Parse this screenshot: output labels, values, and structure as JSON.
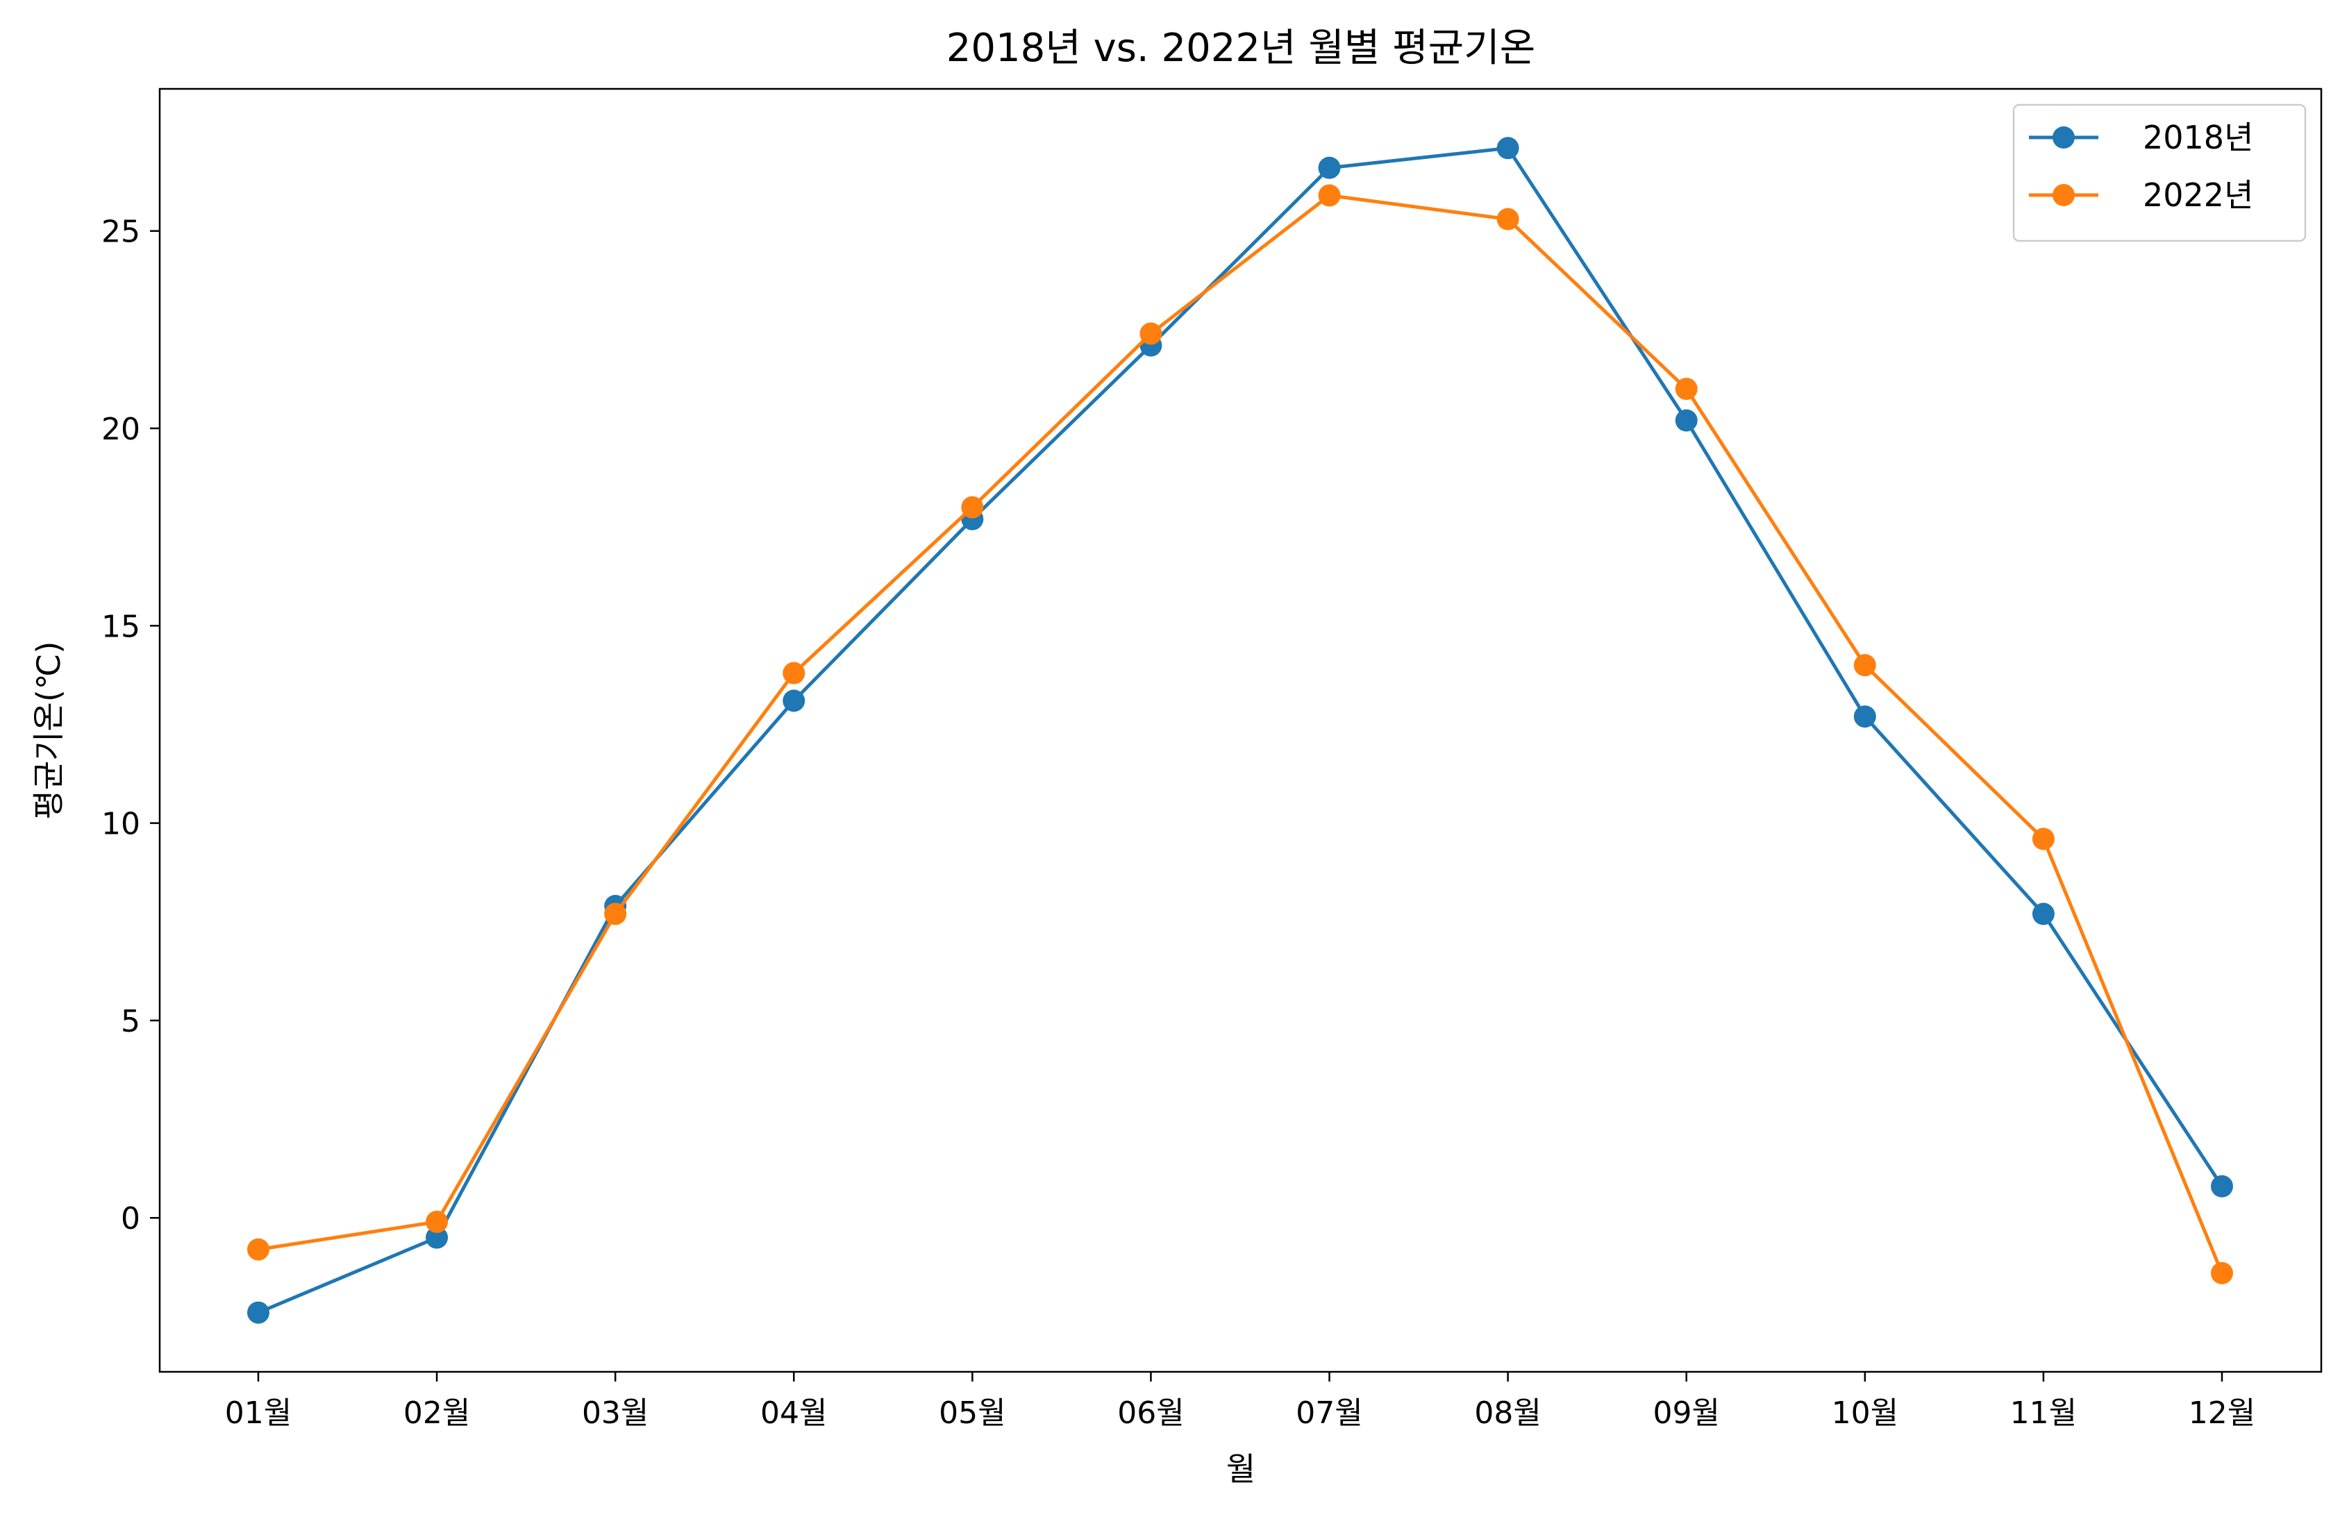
{
  "chart_data": {
    "type": "line",
    "title": "2018년 vs. 2022년 월별 평균기온",
    "xlabel": "월",
    "ylabel": "평균기온(℃)",
    "categories": [
      "01월",
      "02월",
      "03월",
      "04월",
      "05월",
      "06월",
      "07월",
      "08월",
      "09월",
      "10월",
      "11월",
      "12월"
    ],
    "series": [
      {
        "name": "2018년",
        "color": "#1f77b4",
        "values": [
          -2.4,
          -0.5,
          7.9,
          13.1,
          17.7,
          22.1,
          26.6,
          27.1,
          20.2,
          12.7,
          7.7,
          0.8
        ]
      },
      {
        "name": "2022년",
        "color": "#ff7f0e",
        "values": [
          -0.8,
          -0.1,
          7.7,
          13.8,
          18.0,
          22.4,
          25.9,
          25.3,
          21.0,
          14.0,
          9.6,
          -1.4
        ]
      }
    ],
    "ylim": [
      -3.9,
      28.6
    ],
    "yticks": [
      0,
      5,
      10,
      15,
      20,
      25
    ],
    "grid": false,
    "legend_position": "top-right",
    "marker": "circle"
  }
}
